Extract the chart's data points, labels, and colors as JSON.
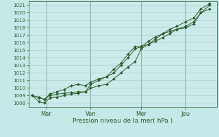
{
  "xlabel": "Pression niveau de la mer( hPa )",
  "bg_color": "#c5e8e8",
  "plot_bg_color": "#cceaea",
  "grid_color": "#9dc8c8",
  "line_color": "#2a5c2a",
  "ylim": [
    1007.5,
    1021.5
  ],
  "yticks": [
    1008,
    1009,
    1010,
    1011,
    1012,
    1013,
    1014,
    1015,
    1016,
    1017,
    1018,
    1019,
    1020,
    1021
  ],
  "xtick_labels": [
    "Mar",
    "Ven",
    "Mer",
    "Jeu"
  ],
  "xtick_positions": [
    0.08,
    0.33,
    0.615,
    0.865
  ],
  "vline_positions": [
    0.08,
    0.33,
    0.615,
    0.865
  ],
  "series": [
    {
      "x": [
        0.0,
        0.04,
        0.07,
        0.1,
        0.14,
        0.18,
        0.22,
        0.26,
        0.3,
        0.33,
        0.375,
        0.42,
        0.46,
        0.5,
        0.54,
        0.58,
        0.615,
        0.655,
        0.695,
        0.735,
        0.775,
        0.815,
        0.865,
        0.91,
        0.95,
        1.0
      ],
      "y": [
        1009.0,
        1008.7,
        1008.5,
        1009.0,
        1009.2,
        1009.3,
        1009.4,
        1009.5,
        1009.5,
        1010.0,
        1010.3,
        1010.5,
        1011.2,
        1012.0,
        1012.8,
        1013.5,
        1015.2,
        1015.8,
        1016.2,
        1016.7,
        1017.2,
        1017.8,
        1018.0,
        1018.5,
        1020.0,
        1020.5
      ]
    },
    {
      "x": [
        0.0,
        0.04,
        0.07,
        0.1,
        0.14,
        0.18,
        0.22,
        0.26,
        0.3,
        0.33,
        0.375,
        0.42,
        0.46,
        0.5,
        0.54,
        0.58,
        0.615,
        0.655,
        0.695,
        0.735,
        0.775,
        0.815,
        0.865,
        0.91,
        0.95,
        1.0
      ],
      "y": [
        1009.0,
        1008.2,
        1008.0,
        1008.7,
        1008.8,
        1009.0,
        1009.2,
        1009.3,
        1009.5,
        1010.5,
        1011.0,
        1011.5,
        1012.0,
        1013.0,
        1014.0,
        1015.2,
        1015.5,
        1015.8,
        1016.5,
        1017.2,
        1017.5,
        1017.8,
        1018.2,
        1018.8,
        1020.0,
        1021.0
      ]
    },
    {
      "x": [
        0.0,
        0.04,
        0.07,
        0.1,
        0.14,
        0.18,
        0.22,
        0.26,
        0.3,
        0.33,
        0.375,
        0.42,
        0.46,
        0.5,
        0.54,
        0.58,
        0.615,
        0.655,
        0.695,
        0.735,
        0.775,
        0.815,
        0.865,
        0.91,
        0.95,
        1.0
      ],
      "y": [
        1009.0,
        1008.8,
        1008.5,
        1009.2,
        1009.5,
        1009.8,
        1010.3,
        1010.5,
        1010.3,
        1010.8,
        1011.2,
        1011.5,
        1012.5,
        1013.3,
        1014.5,
        1015.5,
        1015.5,
        1016.2,
        1016.8,
        1017.2,
        1017.8,
        1018.2,
        1018.8,
        1019.3,
        1020.5,
        1021.2
      ]
    }
  ]
}
